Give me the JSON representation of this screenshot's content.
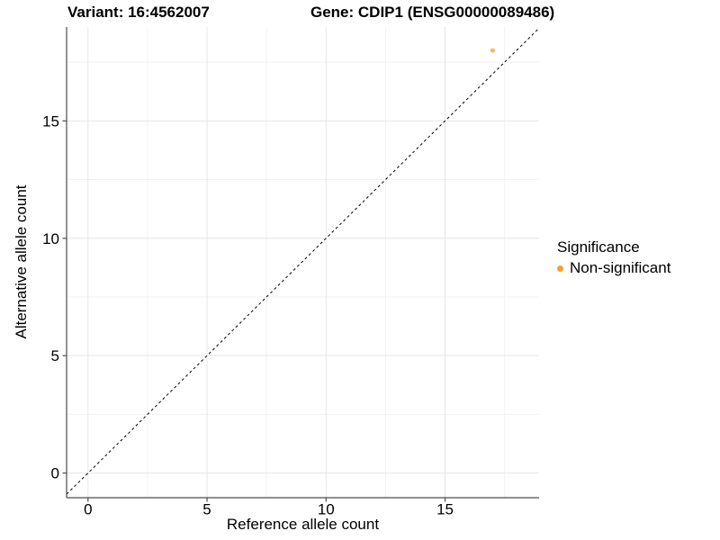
{
  "chart_data": {
    "type": "scatter",
    "titles": {
      "left": "Variant: 16:4562007",
      "right": "Gene: CDIP1 (ENSG00000089486)"
    },
    "xlabel": "Reference allele count",
    "ylabel": "Alternative allele count",
    "xlim": [
      -0.9,
      18.95
    ],
    "ylim": [
      -1.05,
      19.0
    ],
    "xticks": [
      0,
      5,
      10,
      15
    ],
    "yticks": [
      0,
      5,
      10,
      15
    ],
    "minor_xticks": [
      2.5,
      7.5,
      12.5,
      17.5
    ],
    "minor_yticks": [
      2.5,
      7.5,
      12.5,
      17.5
    ],
    "grid": "major and minor gridlines on white panel",
    "identity_line": {
      "style": "dashed",
      "slope": 1,
      "intercept": 0,
      "color": "#000000"
    },
    "series": [
      {
        "name": "Non-significant",
        "color": "#F8A02C",
        "points": [
          {
            "x": 17,
            "y": 18
          }
        ]
      }
    ],
    "legend": {
      "title": "Significance",
      "position": "right",
      "items": [
        {
          "label": "Non-significant",
          "color": "#F8A02C"
        }
      ]
    },
    "colors": {
      "point": "#F8A02C",
      "grid_major": "#e6e6e6",
      "grid_minor": "#f2f2f2",
      "axis_line": "#4d4d4d",
      "text": "#000000",
      "background": "#ffffff"
    }
  }
}
